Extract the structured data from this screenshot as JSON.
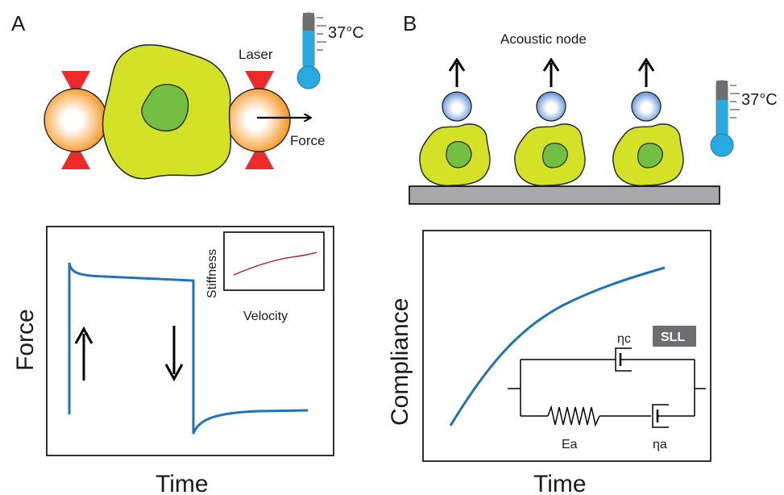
{
  "panel_a": {
    "letter": "A",
    "laser_label": "Laser",
    "force_label": "Force",
    "temperature": "37°C",
    "plot": {
      "ylabel": "Force",
      "xlabel": "Time",
      "inset": {
        "ylabel": "Stiffness",
        "xlabel": "Velocity"
      },
      "up_arrow": "up-arrow-icon",
      "down_arrow": "down-arrow-icon"
    }
  },
  "panel_b": {
    "letter": "B",
    "acoustic_label": "Acoustic node",
    "temperature": "37°C",
    "plot": {
      "ylabel": "Compliance",
      "xlabel": "Time",
      "model_badge": "SLL",
      "dashpot_c_label": "ηc",
      "spring_label": "Ea",
      "dashpot_a_label": "ηa"
    }
  },
  "colors": {
    "cell_body": "#d4e227",
    "nucleus": "#72bf44",
    "bead_orange": "#f7941d",
    "laser_red": "#ec2a2a",
    "bead_blue": "#5b8fd6",
    "curve_blue": "#1f73b7",
    "inset_curve": "#b5343c",
    "thermo_fluid": "#29a9e0",
    "badge_gray": "#6d6e71"
  }
}
